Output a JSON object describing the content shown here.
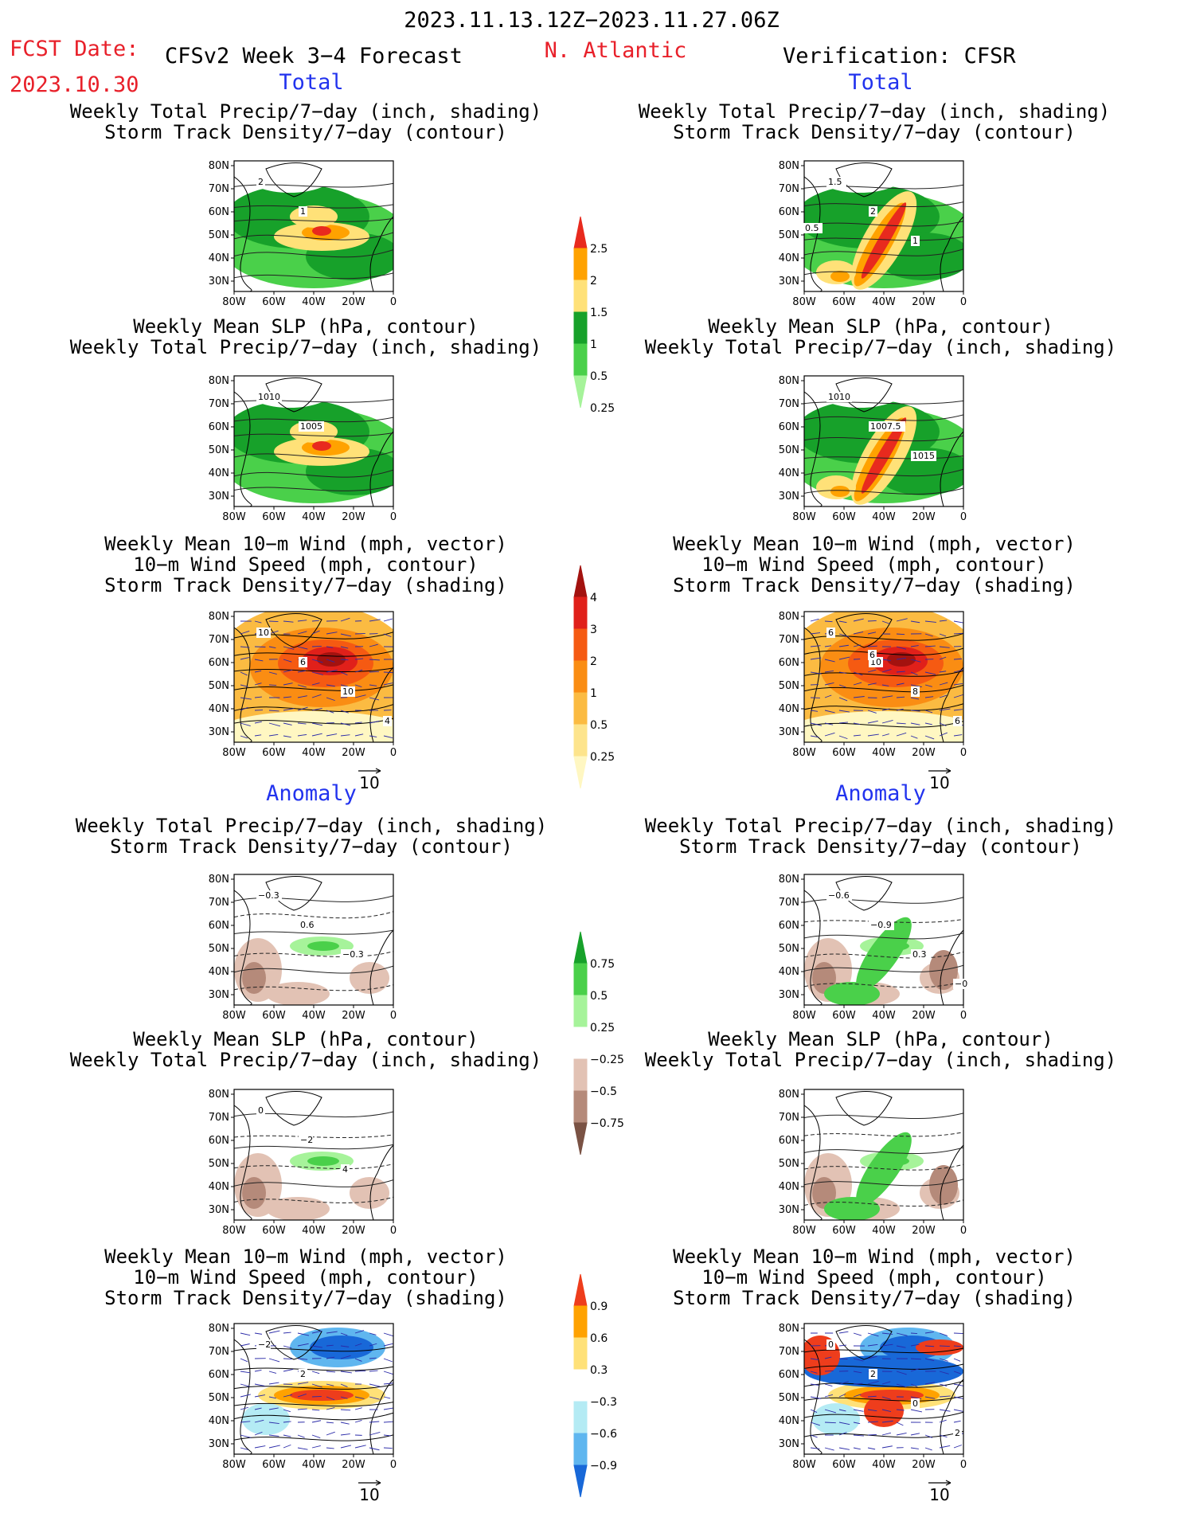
{
  "header": {
    "date_range": "2023.11.13.12Z−2023.11.27.06Z",
    "fcst_label": "FCST Date:",
    "fcst_date": "2023.10.30",
    "model": "CFSv2 Week 3−4 Forecast",
    "region": "N. Atlantic",
    "verification": "Verification: CFSR"
  },
  "sections": {
    "total": "Total",
    "anomaly": "Anomaly"
  },
  "panel_titles": {
    "precip_track": [
      "Weekly Total Precip/7−day (inch, shading)",
      "Storm Track Density/7−day (contour)"
    ],
    "slp_precip": [
      "Weekly Mean SLP (hPa, contour)",
      "Weekly Total Precip/7−day (inch, shading)"
    ],
    "wind_track": [
      "Weekly Mean 10−m Wind (mph, vector)",
      "10−m Wind Speed (mph, contour)",
      "Storm Track Density/7−day (shading)"
    ]
  },
  "axes": {
    "lat_ticks": [
      "80N",
      "70N",
      "60N",
      "50N",
      "40N",
      "30N"
    ],
    "lon_ticks": [
      "80W",
      "60W",
      "40W",
      "20W",
      "0"
    ],
    "vector_ref": "10"
  },
  "colorbars": {
    "precip_total": {
      "labels": [
        "2.5",
        "2",
        "1.5",
        "1",
        "0.5",
        "0.25"
      ],
      "colors": [
        "#e82a1e",
        "#ffa200",
        "#ffe178",
        "#17a12a",
        "#4ad04a",
        "#a6f39a"
      ]
    },
    "track_total": {
      "labels": [
        "4",
        "3",
        "2",
        "1",
        "0.5",
        "0.25"
      ],
      "colors": [
        "#a3120f",
        "#e0201a",
        "#f55a12",
        "#fa8d13",
        "#fbbb42",
        "#fde48c",
        "#fff7c2"
      ]
    },
    "precip_anom": {
      "labels": [
        "0.75",
        "0.5",
        "0.25",
        "−0.25",
        "−0.5",
        "−0.75"
      ],
      "colors": [
        "#17a12a",
        "#4ad04a",
        "#a6f39a",
        "#ffffff",
        "#e2c2b4",
        "#b58a7a",
        "#7a5244"
      ]
    },
    "track_anom": {
      "labels": [
        "0.9",
        "0.6",
        "0.3",
        "−0.3",
        "−0.6",
        "−0.9"
      ],
      "colors": [
        "#ee3d1c",
        "#ffa200",
        "#ffe178",
        "#ffffff",
        "#b4ebf4",
        "#5fb6ef",
        "#1868d8"
      ]
    }
  },
  "contour_labels": {
    "fc_precip_track": [
      "2",
      "1"
    ],
    "an_precip_track": [
      "1.5",
      "2",
      "1"
    ],
    "an_precip_track_left": "0.5",
    "fc_slp": [
      "1010",
      "1005"
    ],
    "an_slp": [
      "1010",
      "1007.5",
      "1015"
    ],
    "fc_wind": [
      "10",
      "6",
      "10",
      "4"
    ],
    "an_wind": [
      "6",
      "10",
      "8",
      "6",
      "6"
    ],
    "fc_anom_precip": [
      "−0.3",
      "0.6",
      "−0.3"
    ],
    "an_anom_precip": [
      "−0.6",
      "−0.9",
      "0.3",
      "−0.3"
    ],
    "fc_anom_slp": [
      "0",
      "−2",
      "4"
    ],
    "fc_anom_wind": [
      "−2",
      "2"
    ],
    "an_anom_wind": [
      "0",
      "2",
      "0",
      "2"
    ]
  }
}
